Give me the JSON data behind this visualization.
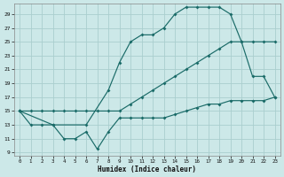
{
  "xlabel": "Humidex (Indice chaleur)",
  "bg_color": "#cce8e8",
  "grid_color": "#aacece",
  "line_color": "#1a6b68",
  "xlim": [
    -0.5,
    23.5
  ],
  "ylim": [
    8.5,
    30.5
  ],
  "xticks": [
    0,
    1,
    2,
    3,
    4,
    5,
    6,
    7,
    8,
    9,
    10,
    11,
    12,
    13,
    14,
    15,
    16,
    17,
    18,
    19,
    20,
    21,
    22,
    23
  ],
  "yticks": [
    9,
    11,
    13,
    15,
    17,
    19,
    21,
    23,
    25,
    27,
    29
  ],
  "curve_wavy_x": [
    0,
    1,
    2,
    3,
    4,
    5,
    6,
    7,
    8,
    9,
    10,
    11,
    12,
    13,
    14,
    15,
    16,
    17,
    18,
    19,
    20,
    21,
    22,
    23
  ],
  "curve_wavy_y": [
    15,
    13,
    13,
    13,
    11,
    11,
    12,
    9.5,
    12,
    14,
    14,
    14,
    14,
    14,
    14.5,
    15,
    15.5,
    16,
    16,
    16.5,
    16.5,
    16.5,
    16.5,
    17
  ],
  "curve_diag_x": [
    0,
    1,
    2,
    3,
    4,
    5,
    6,
    7,
    8,
    9,
    10,
    11,
    12,
    13,
    14,
    15,
    16,
    17,
    18,
    19,
    20,
    21,
    22,
    23
  ],
  "curve_diag_y": [
    15,
    15,
    15,
    15,
    15,
    15,
    15,
    15,
    15,
    15,
    16,
    17,
    18,
    19,
    20,
    21,
    22,
    23,
    24,
    25,
    25,
    25,
    25,
    25
  ],
  "curve_peak_x": [
    0,
    3,
    6,
    8,
    9,
    10,
    11,
    12,
    13,
    14,
    15,
    16,
    17,
    18,
    19,
    20,
    21,
    22,
    23
  ],
  "curve_peak_y": [
    15,
    13,
    13,
    18,
    22,
    25,
    26,
    26,
    27,
    29,
    30,
    30,
    30,
    30,
    29,
    25,
    20,
    20,
    17
  ]
}
